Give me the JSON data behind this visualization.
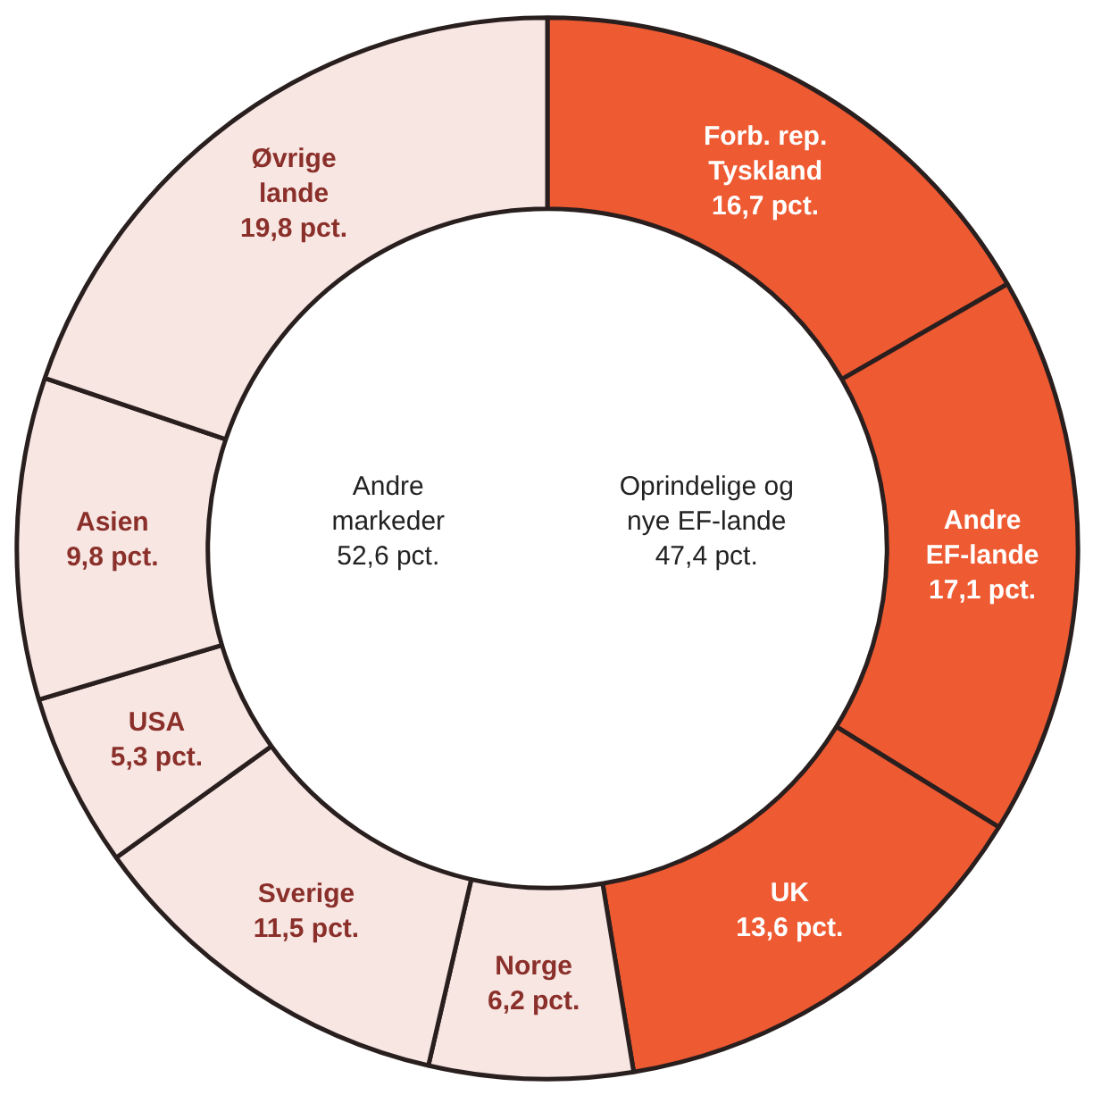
{
  "chart_data": {
    "type": "donut",
    "categories": [
      "Forb. rep.\nTyskland",
      "Andre\nEF-lande",
      "UK",
      "Norge",
      "Sverige",
      "USA",
      "Asien",
      "Øvrige\nlande"
    ],
    "values": [
      16.7,
      17.1,
      13.6,
      6.2,
      11.5,
      5.3,
      9.8,
      19.8
    ],
    "value_labels": [
      "16,7 pct.",
      "17,1 pct.",
      "13,6 pct.",
      "6,2 pct.",
      "11,5 pct.",
      "5,3 pct.",
      "9,8 pct.",
      "19,8 pct."
    ],
    "colors": [
      "#ee5a32",
      "#ee5a32",
      "#ee5a32",
      "#f7e6e2",
      "#f7e6e2",
      "#f7e6e2",
      "#f7e6e2",
      "#f7e6e2"
    ],
    "annotations": [
      "Andre\nmarkeder\n52,6 pct.",
      "Oprindelige og\nnye EF-lande\n47,4 pct."
    ]
  }
}
